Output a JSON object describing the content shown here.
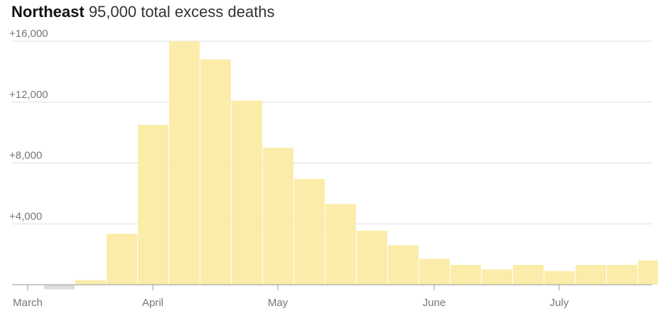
{
  "header": {
    "region": "Northeast",
    "subtitle": "95,000 total excess deaths"
  },
  "chart_data": {
    "type": "bar",
    "title": "Northeast",
    "subtitle": "95,000 total excess deaths",
    "xlabel": "",
    "ylabel": "",
    "ylim": [
      -300,
      16000
    ],
    "grid": true,
    "y_ticks": [
      {
        "value": 16000,
        "label": "+16,000"
      },
      {
        "value": 12000,
        "label": "+12,000"
      },
      {
        "value": 8000,
        "label": "+8,000"
      },
      {
        "value": 4000,
        "label": "+4,000"
      }
    ],
    "x_ticks": [
      {
        "week": 0,
        "label": "March"
      },
      {
        "week": 4,
        "label": "April"
      },
      {
        "week": 8,
        "label": "May"
      },
      {
        "week": 13,
        "label": "June"
      },
      {
        "week": 17,
        "label": "July"
      }
    ],
    "values": [
      0,
      -300,
      300,
      3350,
      10500,
      16000,
      14800,
      12100,
      9000,
      6950,
      5300,
      3550,
      2600,
      1700,
      1300,
      1000,
      1300,
      900,
      1300,
      1300,
      1600
    ],
    "colors": {
      "positive": "#fcecaa",
      "negative": "#dddddd"
    }
  }
}
